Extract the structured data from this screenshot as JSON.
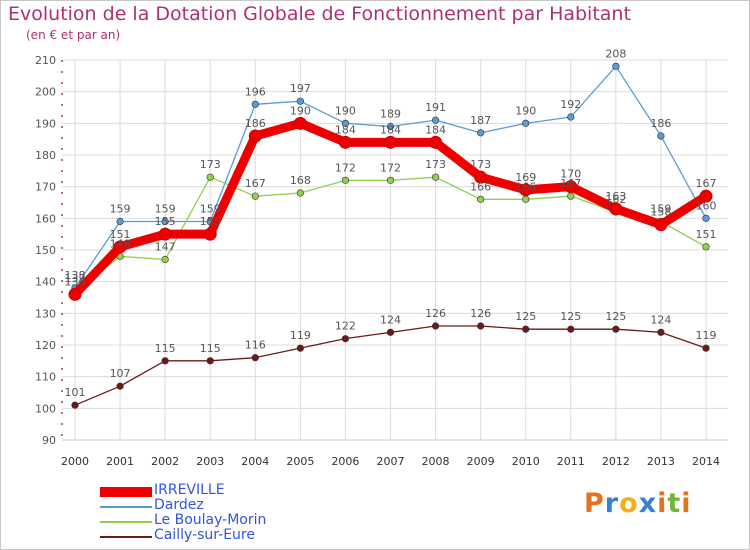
{
  "chart_data": {
    "type": "line",
    "title": "Evolution de la Dotation Globale de Fonctionnement par Habitant",
    "subtitle": "(en € et par an)",
    "xlabel": "",
    "ylabel": "",
    "ylim": [
      90,
      210
    ],
    "yticks": [
      90,
      100,
      110,
      120,
      130,
      140,
      150,
      160,
      170,
      180,
      190,
      200,
      210
    ],
    "x": [
      "2000",
      "2001",
      "2002",
      "2003",
      "2004",
      "2005",
      "2006",
      "2007",
      "2008",
      "2009",
      "2010",
      "2011",
      "2012",
      "2013",
      "2014"
    ],
    "grid": true,
    "legend_position": "bottom-left",
    "series": [
      {
        "name": "IRREVILLE",
        "color": "#ee0000",
        "emphasis": true,
        "values": [
          136,
          151,
          155,
          155,
          186,
          190,
          184,
          184,
          184,
          173,
          169,
          170,
          163,
          158,
          167
        ]
      },
      {
        "name": "Dardez",
        "color": "#5b9bd5",
        "values": [
          138,
          159,
          159,
          159,
          196,
          197,
          190,
          189,
          191,
          187,
          190,
          192,
          208,
          186,
          160
        ]
      },
      {
        "name": "Le Boulay-Morin",
        "color": "#8fd14f",
        "values": [
          137,
          148,
          147,
          173,
          167,
          168,
          172,
          172,
          173,
          166,
          166,
          167,
          162,
          159,
          151
        ]
      },
      {
        "name": "Cailly-sur-Eure",
        "color": "#6b1a1a",
        "values": [
          101,
          107,
          115,
          115,
          116,
          119,
          122,
          124,
          126,
          126,
          125,
          125,
          125,
          124,
          119
        ]
      }
    ]
  },
  "brand": {
    "text": "Proxiti",
    "colors": [
      "#e8701a",
      "#3a7fd0",
      "#f2b01e",
      "#3a7fd0",
      "#e8701a",
      "#72b838",
      "#e8701a"
    ]
  }
}
